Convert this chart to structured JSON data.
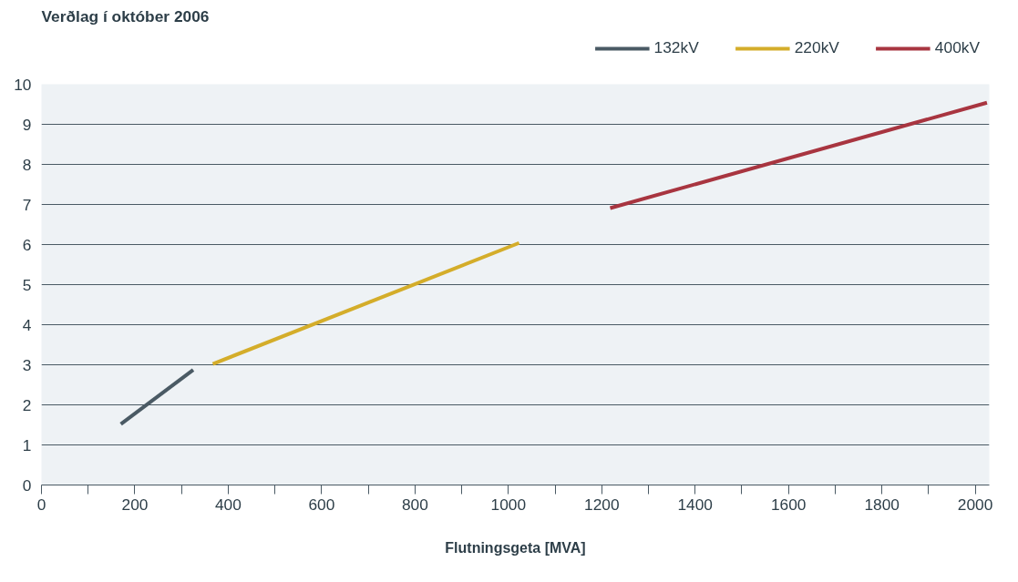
{
  "chart_data": {
    "type": "line",
    "title": "Verðlag í október 2006",
    "xlabel": "Flutningsgeta [MVA]",
    "series": [
      {
        "name": "132kV",
        "color": "#4a5a64",
        "x": [
          170,
          325
        ],
        "values": [
          1.52,
          2.87
        ]
      },
      {
        "name": "220kV",
        "color": "#d4ad2a",
        "x": [
          367,
          1023
        ],
        "values": [
          3.02,
          6.04
        ]
      },
      {
        "name": "400kV",
        "color": "#a83540",
        "x": [
          1218,
          2025
        ],
        "values": [
          6.91,
          9.54
        ]
      }
    ],
    "xlim": [
      0,
      2030
    ],
    "ylim": [
      0,
      10
    ],
    "xticks": [
      0,
      {
        "value": 100,
        "label": null
      },
      200,
      {
        "value": 300,
        "label": null
      },
      400,
      {
        "value": 500,
        "label": null
      },
      600,
      {
        "value": 700,
        "label": null
      },
      800,
      {
        "value": 900,
        "label": null
      },
      1000,
      {
        "value": 1100,
        "label": null
      },
      1200,
      {
        "value": 1300,
        "label": null
      },
      1400,
      {
        "value": 1500,
        "label": null
      },
      1600,
      {
        "value": 1700,
        "label": null
      },
      1800,
      {
        "value": 1900,
        "label": null
      },
      2000
    ],
    "yticks": [
      0,
      1,
      2,
      3,
      4,
      5,
      6,
      7,
      8,
      9,
      10
    ],
    "grid": "y",
    "legend": "top right",
    "line_style": "solid"
  }
}
